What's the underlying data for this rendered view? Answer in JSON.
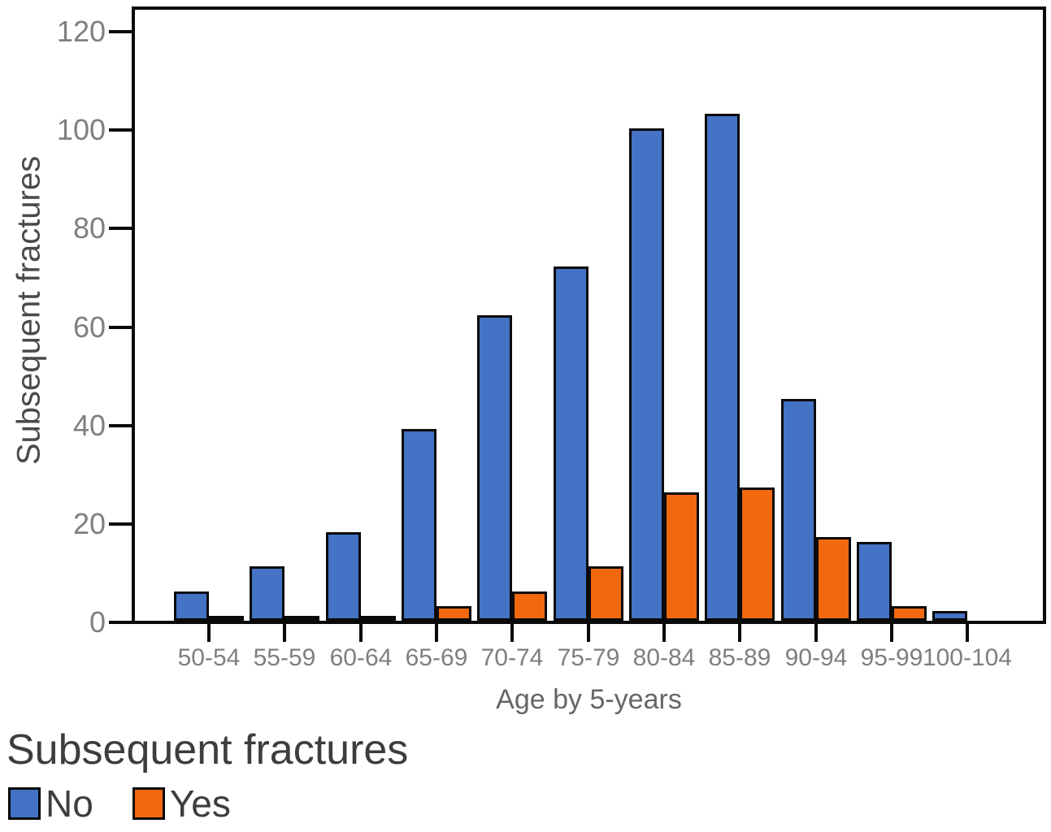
{
  "chart_data": {
    "type": "bar",
    "title": "",
    "categories": [
      "50-54",
      "55-59",
      "60-64",
      "65-69",
      "70-74",
      "75-79",
      "80-84",
      "85-89",
      "90-94",
      "95-99",
      "100-104"
    ],
    "series": [
      {
        "name": "No",
        "color": "#4472c4",
        "values": [
          6,
          11,
          18,
          39,
          62,
          72,
          100,
          103,
          45,
          16,
          2
        ]
      },
      {
        "name": "Yes",
        "color": "#f2680e",
        "values": [
          1,
          1,
          1,
          3,
          6,
          11,
          26,
          27,
          17,
          3,
          0
        ]
      }
    ],
    "xlabel": "Age by 5-years",
    "ylabel": "Subsequent fractures",
    "ylim": [
      0,
      124
    ],
    "yticks": [
      0,
      20,
      40,
      60,
      80,
      100,
      120
    ],
    "grid": false,
    "legend": {
      "title": "Subsequent fractures",
      "position": "bottom-left"
    }
  },
  "colors": {
    "background": "#ffffff",
    "axis": "#0a0a0a",
    "bar_border": "#0a0a0a",
    "tick_label": "#7f7f7f",
    "y_axis_title": "#4a4a4a",
    "x_axis_title": "#666666",
    "legend_text": "#3d3d3d"
  }
}
